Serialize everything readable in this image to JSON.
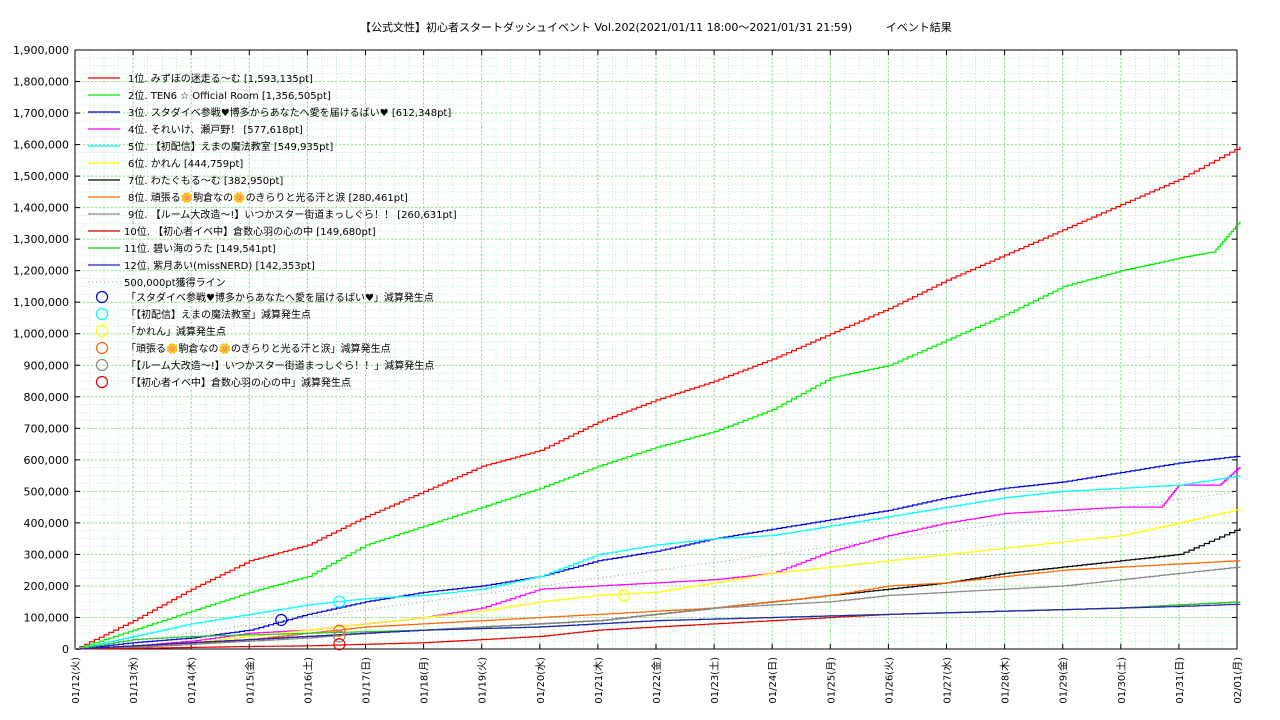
{
  "chart_data": {
    "type": "line",
    "title": "【公式文性】初心者スタートダッシュイベント Vol.202(2021/01/11 18:00〜2021/01/31 21:59)",
    "subtitle": "イベント結果",
    "ylim": [
      0,
      1900000
    ],
    "y_ticks": [
      "0",
      "100,000",
      "200,000",
      "300,000",
      "400,000",
      "500,000",
      "600,000",
      "700,000",
      "800,000",
      "900,000",
      "1,000,000",
      "1,100,000",
      "1,200,000",
      "1,300,000",
      "1,400,000",
      "1,500,000",
      "1,600,000",
      "1,700,000",
      "1,800,000",
      "1,900,000"
    ],
    "x_ticks": [
      "01/12(火)",
      "01/13(水)",
      "01/14(木)",
      "01/15(金)",
      "01/16(土)",
      "01/17(日)",
      "01/18(月)",
      "01/19(火)",
      "01/20(水)",
      "01/21(木)",
      "01/22(金)",
      "01/23(土)",
      "01/24(日)",
      "01/25(月)",
      "01/26(火)",
      "01/27(水)",
      "01/28(木)",
      "01/29(金)",
      "01/30(土)",
      "01/31(日)",
      "02/01(月)"
    ],
    "grid": true,
    "legend_position": "top-left",
    "series": [
      {
        "name": "1位. みずほの迷走る〜む [1,593,135pt]",
        "color": "#ff0000",
        "x": [
          0,
          1,
          2,
          3,
          4,
          5,
          6,
          7,
          8,
          9,
          10,
          11,
          12,
          13,
          14,
          15,
          16,
          17,
          18,
          19,
          20.05
        ],
        "y": [
          0,
          90000,
          190000,
          280000,
          330000,
          420000,
          500000,
          580000,
          630000,
          720000,
          790000,
          850000,
          920000,
          1000000,
          1080000,
          1170000,
          1250000,
          1330000,
          1410000,
          1490000,
          1593135
        ]
      },
      {
        "name": "2位. TEN6 ☆ Official Room [1,356,505pt]",
        "color": "#00ee00",
        "x": [
          0,
          1,
          2,
          3,
          4,
          5,
          6,
          7,
          8,
          9,
          10,
          11,
          12,
          13,
          14,
          15,
          16,
          17,
          18,
          19,
          19.6,
          20.05
        ],
        "y": [
          0,
          60000,
          120000,
          180000,
          230000,
          330000,
          390000,
          450000,
          510000,
          580000,
          640000,
          690000,
          760000,
          860000,
          900000,
          980000,
          1060000,
          1150000,
          1200000,
          1240000,
          1260000,
          1356505
        ]
      },
      {
        "name": "3位. スタダイベ参戦♥博多からあなたへ愛を届けるばい♥ [612,348pt]",
        "color": "#0000dd",
        "x": [
          0,
          1,
          2,
          3,
          4,
          5,
          6,
          7,
          8,
          9,
          10,
          11,
          12,
          13,
          14,
          15,
          16,
          17,
          18,
          19,
          20.05
        ],
        "y": [
          0,
          20000,
          35000,
          60000,
          110000,
          150000,
          180000,
          200000,
          230000,
          280000,
          310000,
          350000,
          380000,
          410000,
          440000,
          480000,
          510000,
          530000,
          560000,
          590000,
          612348
        ]
      },
      {
        "name": "4位. それいけ、瀬戸野！ [577,618pt]",
        "color": "#ff00ff",
        "x": [
          0,
          1,
          2,
          3,
          4,
          5,
          6,
          7,
          8,
          9,
          10,
          11,
          12,
          13,
          14,
          15,
          16,
          17,
          18,
          18.7,
          19,
          19.7,
          20.05
        ],
        "y": [
          0,
          10000,
          25000,
          50000,
          60000,
          80000,
          100000,
          130000,
          190000,
          200000,
          210000,
          220000,
          240000,
          310000,
          360000,
          400000,
          430000,
          440000,
          450000,
          450000,
          520000,
          520000,
          577618
        ]
      },
      {
        "name": "5位. 【初配信】えまの魔法教室 [549,935pt]",
        "color": "#00ffff",
        "x": [
          0,
          1,
          2,
          3,
          4,
          5,
          6,
          7,
          8,
          9,
          10,
          11,
          12,
          13,
          14,
          15,
          16,
          17,
          18,
          19,
          20.05
        ],
        "y": [
          0,
          40000,
          80000,
          110000,
          140000,
          160000,
          170000,
          190000,
          230000,
          300000,
          330000,
          350000,
          360000,
          390000,
          420000,
          450000,
          480000,
          500000,
          510000,
          520000,
          549935
        ]
      },
      {
        "name": "6位. かれん [444,759pt]",
        "color": "#ffff00",
        "x": [
          0,
          1,
          2,
          3,
          4,
          5,
          6,
          7,
          8,
          9,
          10,
          11,
          12,
          13,
          14,
          15,
          16,
          17,
          18,
          19,
          20.05
        ],
        "y": [
          0,
          10000,
          20000,
          40000,
          60000,
          80000,
          100000,
          120000,
          150000,
          170000,
          180000,
          210000,
          240000,
          260000,
          280000,
          300000,
          320000,
          340000,
          360000,
          400000,
          444759
        ]
      },
      {
        "name": "7位. わたぐもる〜む [382,950pt]",
        "color": "#000000",
        "x": [
          0,
          1,
          2,
          3,
          4,
          5,
          6,
          7,
          8,
          9,
          10,
          11,
          12,
          13,
          14,
          15,
          16,
          17,
          18,
          19,
          20.05
        ],
        "y": [
          0,
          10000,
          20000,
          30000,
          40000,
          50000,
          60000,
          70000,
          80000,
          90000,
          110000,
          130000,
          150000,
          170000,
          190000,
          210000,
          240000,
          260000,
          280000,
          300000,
          382950
        ]
      },
      {
        "name": "8位. 頑張る🌼駒倉なの🌼のきらりと光る汗と涙 [280,461pt]",
        "color": "#ff6600",
        "x": [
          0,
          1,
          2,
          3,
          4,
          5,
          6,
          7,
          8,
          9,
          10,
          11,
          12,
          13,
          14,
          15,
          16,
          17,
          18,
          19,
          20.05
        ],
        "y": [
          0,
          5000,
          15000,
          30000,
          50000,
          70000,
          80000,
          90000,
          100000,
          110000,
          120000,
          130000,
          150000,
          170000,
          200000,
          210000,
          230000,
          250000,
          260000,
          270000,
          280461
        ]
      },
      {
        "name": "9位. 【ルーム大改造〜!】いつかスター街道まっしぐら！！ [260,631pt]",
        "color": "#888888",
        "x": [
          0,
          1,
          2,
          3,
          4,
          5,
          6,
          7,
          8,
          9,
          10,
          11,
          12,
          13,
          14,
          15,
          16,
          17,
          18,
          19,
          20.05
        ],
        "y": [
          0,
          5000,
          15000,
          25000,
          35000,
          50000,
          60000,
          70000,
          80000,
          90000,
          110000,
          130000,
          140000,
          150000,
          170000,
          180000,
          190000,
          200000,
          220000,
          240000,
          260631
        ]
      },
      {
        "name": "10位. 【初心者イベ中】倉数心羽の心の中 [149,680pt]",
        "color": "#dd0000",
        "x": [
          0,
          1,
          2,
          3,
          4,
          5,
          6,
          7,
          8,
          9,
          10,
          11,
          12,
          13,
          14,
          15,
          16,
          17,
          18,
          19,
          20.05
        ],
        "y": [
          0,
          2000,
          5000,
          8000,
          10000,
          15000,
          20000,
          30000,
          40000,
          60000,
          70000,
          80000,
          90000,
          100000,
          110000,
          115000,
          120000,
          125000,
          130000,
          140000,
          149680
        ]
      },
      {
        "name": "11位. 碧い海のうた [149,541pt]",
        "color": "#22cc22",
        "x": [
          0,
          1,
          2,
          3,
          4,
          5,
          6,
          7,
          8,
          9,
          10,
          11,
          12,
          13,
          14,
          15,
          16,
          17,
          18,
          19,
          20.05
        ],
        "y": [
          0,
          30000,
          40000,
          45000,
          50000,
          55000,
          60000,
          65000,
          70000,
          80000,
          90000,
          95000,
          100000,
          105000,
          110000,
          115000,
          120000,
          125000,
          130000,
          140000,
          149541
        ]
      },
      {
        "name": "12位. 紫月あい(missNERD) [142,353pt]",
        "color": "#2222bb",
        "x": [
          0,
          1,
          2,
          3,
          4,
          5,
          6,
          7,
          8,
          9,
          10,
          11,
          12,
          13,
          14,
          15,
          16,
          17,
          18,
          19,
          20.05
        ],
        "y": [
          0,
          10000,
          20000,
          30000,
          40000,
          50000,
          60000,
          65000,
          70000,
          80000,
          90000,
          95000,
          100000,
          105000,
          110000,
          115000,
          120000,
          125000,
          130000,
          135000,
          142353
        ]
      },
      {
        "name": "500,000pt獲得ライン",
        "color": "#aaaaaa",
        "dotted": true,
        "x": [
          0,
          20.05
        ],
        "y": [
          0,
          500000
        ]
      }
    ],
    "markers": [
      {
        "name": "「スタダイベ参戦♥博多からあなたへ愛を届けるばい♥」減算発生点",
        "color": "#0000dd",
        "x": 3.55,
        "y": 92000
      },
      {
        "name": "「【初配信】えまの魔法教室」減算発生点",
        "color": "#00ffff",
        "x": 4.55,
        "y": 150000
      },
      {
        "name": "「かれん」減算発生点",
        "color": "#ffff00",
        "x": 9.45,
        "y": 170000
      },
      {
        "name": "「頑張る🌼駒倉なの🌼のきらりと光る汗と涙」減算発生点",
        "color": "#ff6600",
        "x": 4.55,
        "y": 58000
      },
      {
        "name": "「【ルーム大改造〜!】いつかスター街道まっしぐら！！」減算発生点",
        "color": "#888888",
        "x": 4.55,
        "y": 40000
      },
      {
        "name": "「【初心者イベ中】倉数心羽の心の中」減算発生点",
        "color": "#dd0000",
        "x": 4.55,
        "y": 15000
      }
    ]
  }
}
